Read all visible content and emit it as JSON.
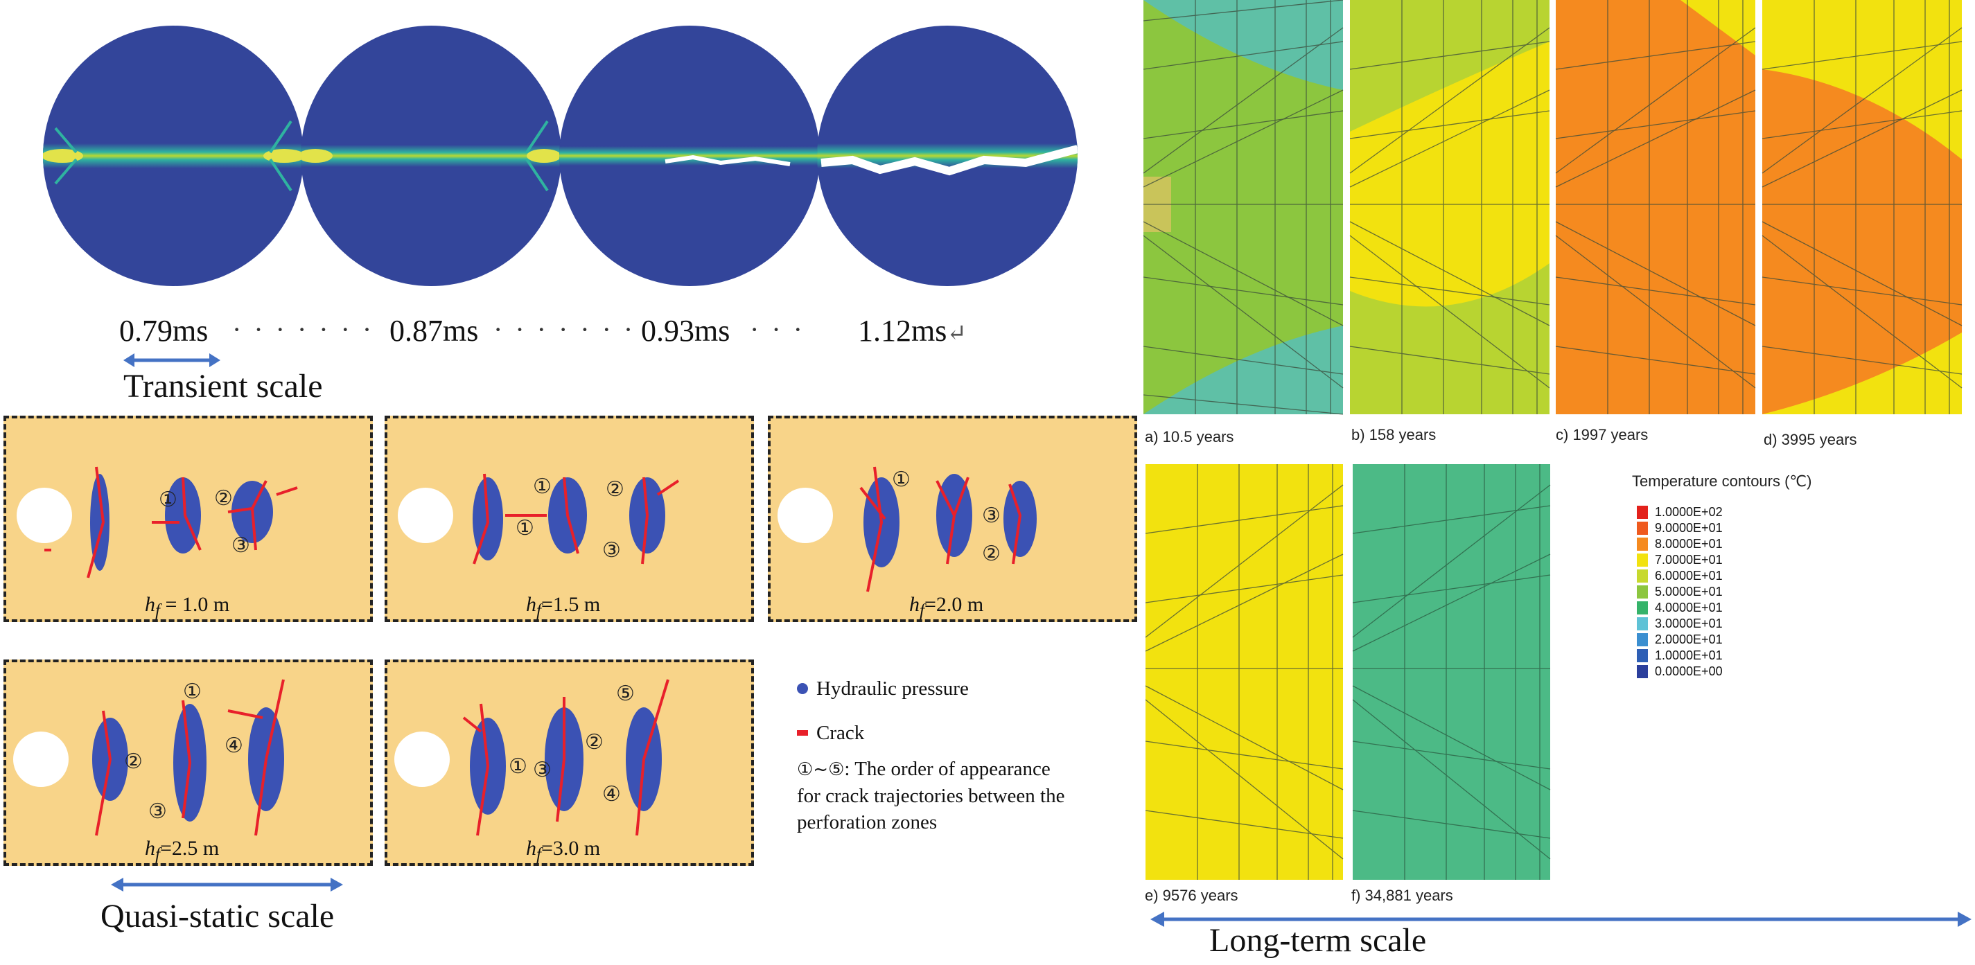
{
  "transient": {
    "times": [
      "0.79ms",
      "0.87ms",
      "0.93ms",
      "1.12ms"
    ],
    "return_mark": "↵",
    "scale_label": "Transient scale",
    "colors": {
      "background": "#33459a",
      "band": "#2fb3a0",
      "crack": "#ffffff"
    }
  },
  "quasi_static": {
    "panels": [
      {
        "hf_symbol": "h",
        "hf_sub": "f",
        "hf_value": "= 1.0 m"
      },
      {
        "hf_symbol": "h",
        "hf_sub": "f",
        "hf_value": "=1.5 m"
      },
      {
        "hf_symbol": "h",
        "hf_sub": "f",
        "hf_value": "=2.0 m"
      },
      {
        "hf_symbol": "h",
        "hf_sub": "f",
        "hf_value": "=2.5 m"
      },
      {
        "hf_symbol": "h",
        "hf_sub": "f",
        "hf_value": "=3.0 m"
      }
    ],
    "order_marks": [
      "①",
      "②",
      "③",
      "④",
      "⑤"
    ],
    "legend": {
      "hydraulic_pressure": "Hydraulic pressure",
      "crack": "Crack",
      "order_prefix": "①~⑤",
      "order_text_line1": ": The order of appearance",
      "order_text_line2": "for crack trajectories between the",
      "order_text_line3": "perforation zones"
    },
    "scale_label": "Quasi-static scale",
    "colors": {
      "background": "#f8d489",
      "pressure": "#3b52b4",
      "crack": "#e8202a"
    }
  },
  "long_term": {
    "captions": [
      "a) 10.5 years",
      "b) 158 years",
      "c) 1997 years",
      "d) 3995 years",
      "e) 9576 years",
      "f) 34,881 years"
    ],
    "contour_title": "Temperature contours (℃)",
    "contour_levels": [
      {
        "label": "1.0000E+02",
        "color": "#e3211c"
      },
      {
        "label": "9.0000E+01",
        "color": "#ef5a1e"
      },
      {
        "label": "8.0000E+01",
        "color": "#f58a1f"
      },
      {
        "label": "7.0000E+01",
        "color": "#f2e20f"
      },
      {
        "label": "6.0000E+01",
        "color": "#c7d92e"
      },
      {
        "label": "5.0000E+01",
        "color": "#8cc63f"
      },
      {
        "label": "4.0000E+01",
        "color": "#35b36a"
      },
      {
        "label": "3.0000E+01",
        "color": "#5fc2d6"
      },
      {
        "label": "2.0000E+01",
        "color": "#3b8fd0"
      },
      {
        "label": "1.0000E+01",
        "color": "#2e5fb5"
      },
      {
        "label": "0.0000E+00",
        "color": "#2b3f9c"
      }
    ],
    "scale_label": "Long-term scale",
    "arrow_color": "#4472c4"
  }
}
